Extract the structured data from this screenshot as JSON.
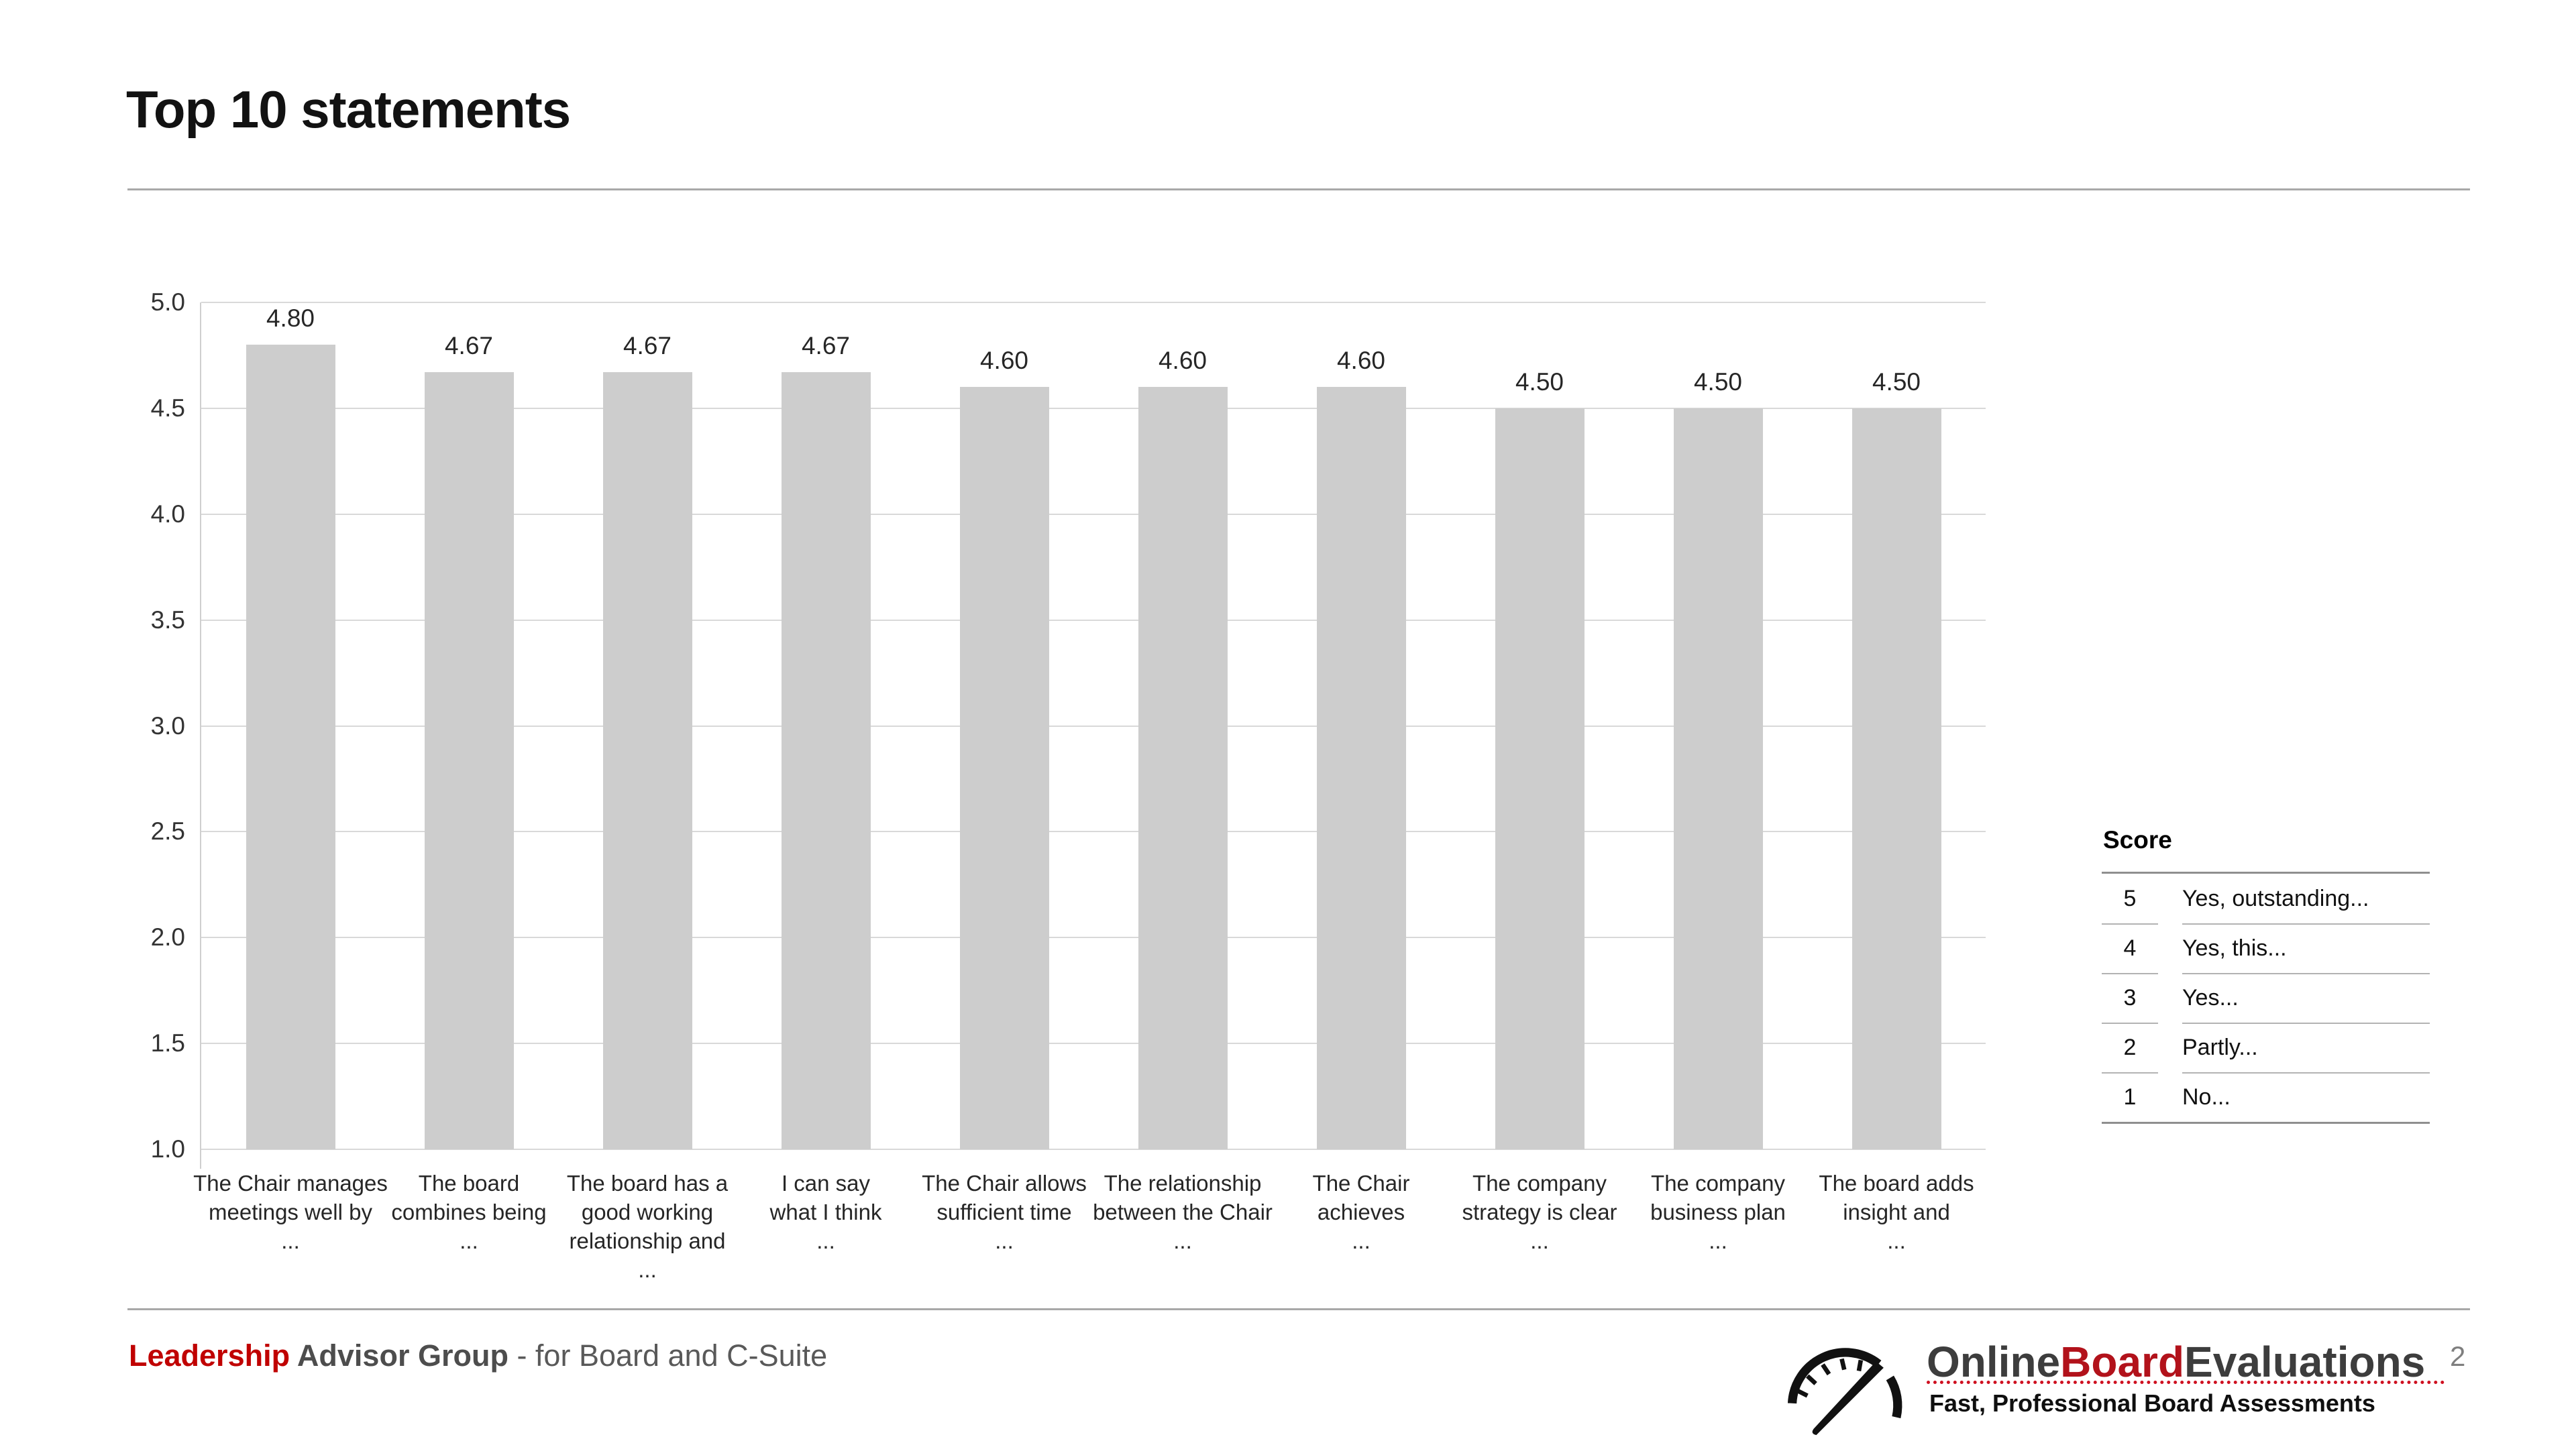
{
  "page": {
    "title": "Top 10 statements",
    "page_number": "2"
  },
  "chart_data": {
    "type": "bar",
    "title": "Top 10 statements",
    "xlabel": "",
    "ylabel": "",
    "ylim": [
      1.0,
      5.0
    ],
    "yticks": [
      "5.0",
      "4.5",
      "4.0",
      "3.5",
      "3.0",
      "2.5",
      "2.0",
      "1.5",
      "1.0"
    ],
    "grid": true,
    "bar_color": "#cdcdcd",
    "legend_position": "none",
    "categories": [
      "The Chair manages meetings well by ...",
      "The board combines being ...",
      "The board has a good working relationship and ...",
      "I can say what I think ...",
      "The Chair allows sufficient time ...",
      "The relationship between the Chair ...",
      "The Chair achieves ...",
      "The company strategy is clear ...",
      "The company business plan ...",
      "The board adds insight and ..."
    ],
    "values": [
      4.8,
      4.67,
      4.67,
      4.67,
      4.6,
      4.6,
      4.6,
      4.5,
      4.5,
      4.5
    ],
    "items": [
      {
        "label_lines": [
          "The Chair manages",
          "meetings well by",
          "..."
        ],
        "value": 4.8,
        "value_label": "4.80"
      },
      {
        "label_lines": [
          "The board",
          "combines being",
          "..."
        ],
        "value": 4.67,
        "value_label": "4.67"
      },
      {
        "label_lines": [
          "The board has a",
          "good working",
          "relationship and",
          "..."
        ],
        "value": 4.67,
        "value_label": "4.67"
      },
      {
        "label_lines": [
          "I can say",
          "what I think",
          "..."
        ],
        "value": 4.67,
        "value_label": "4.67"
      },
      {
        "label_lines": [
          "The Chair allows",
          "sufficient time",
          "..."
        ],
        "value": 4.6,
        "value_label": "4.60"
      },
      {
        "label_lines": [
          "The relationship",
          "between the Chair",
          "..."
        ],
        "value": 4.6,
        "value_label": "4.60"
      },
      {
        "label_lines": [
          "The Chair",
          "achieves",
          "..."
        ],
        "value": 4.6,
        "value_label": "4.60"
      },
      {
        "label_lines": [
          "The company",
          "strategy is clear",
          "..."
        ],
        "value": 4.5,
        "value_label": "4.50"
      },
      {
        "label_lines": [
          "The company",
          "business plan",
          "..."
        ],
        "value": 4.5,
        "value_label": "4.50"
      },
      {
        "label_lines": [
          "The board adds",
          "insight and",
          "..."
        ],
        "value": 4.5,
        "value_label": "4.50"
      }
    ]
  },
  "legend": {
    "header": "Score",
    "rows": [
      {
        "score": "5",
        "meaning": "Yes, outstanding..."
      },
      {
        "score": "4",
        "meaning": "Yes, this..."
      },
      {
        "score": "3",
        "meaning": "Yes..."
      },
      {
        "score": "2",
        "meaning": "Partly..."
      },
      {
        "score": "1",
        "meaning": "No..."
      }
    ]
  },
  "footer": {
    "brand_red": "Leadership",
    "brand_dark": " Advisor Group",
    "brand_rest": " - for Board and C-Suite",
    "logo": {
      "icon": "gauge-icon",
      "part1": "Online",
      "part2": "Board",
      "part3": "Evaluations",
      "tagline": "Fast, Professional Board Assessments"
    },
    "page_number": "2"
  },
  "colors": {
    "accent_red": "#c00000",
    "logo_red": "#b2121b",
    "bar": "#cdcdcd",
    "gridline": "#d9d9d9",
    "divider": "#a8a8a8",
    "text_dark": "#262626",
    "text_gray": "#595959"
  }
}
